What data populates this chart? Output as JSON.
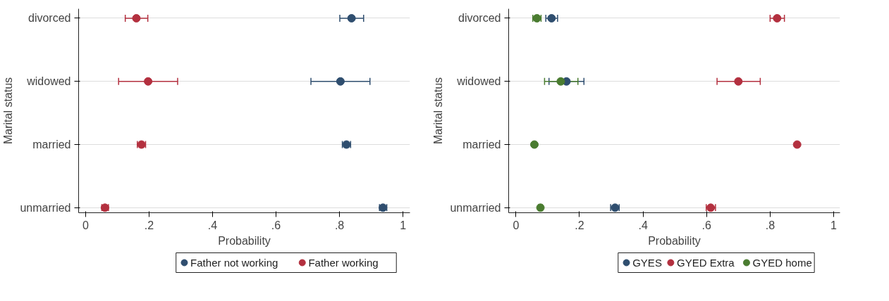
{
  "chart_data": [
    {
      "type": "scatter",
      "orientation": "horizontal",
      "xlabel": "Probability",
      "ylabel": "Marital status",
      "categories": [
        "divorced",
        "widowed",
        "married",
        "unmarried"
      ],
      "xlim": [
        -0.022,
        1.022
      ],
      "xticks": [
        0,
        {
          "value": 0.2,
          "label": ".2"
        },
        {
          "value": 0.4,
          "label": ".4"
        },
        {
          "value": 0.6,
          "label": ".6"
        },
        {
          "value": 0.8,
          "label": ".8"
        },
        1
      ],
      "grid": "y",
      "legend": "bottom",
      "marker": "circle",
      "series": [
        {
          "name": "Father not working",
          "color": "#2f4e6f",
          "values": [
            0.838,
            0.803,
            0.822,
            0.937
          ],
          "errors": [
            [
              0.801,
              0.876
            ],
            [
              0.71,
              0.896
            ],
            [
              0.809,
              0.835
            ],
            [
              0.926,
              0.949
            ]
          ]
        },
        {
          "name": "Father working",
          "color": "#b3303f",
          "values": [
            0.16,
            0.197,
            0.176,
            0.061
          ],
          "errors": [
            [
              0.125,
              0.196
            ],
            [
              0.104,
              0.29
            ],
            [
              0.163,
              0.189
            ],
            [
              0.051,
              0.072
            ]
          ]
        }
      ]
    },
    {
      "type": "scatter",
      "orientation": "horizontal",
      "xlabel": "Probability",
      "ylabel": "Marital status",
      "categories": [
        "divorced",
        "widowed",
        "married",
        "unmarried"
      ],
      "xlim": [
        -0.023,
        1.02
      ],
      "xticks": [
        0,
        {
          "value": 0.2,
          "label": ".2"
        },
        {
          "value": 0.4,
          "label": ".4"
        },
        {
          "value": 0.6,
          "label": ".6"
        },
        {
          "value": 0.8,
          "label": ".8"
        },
        1
      ],
      "grid": "y",
      "legend": "bottom",
      "marker": "circle",
      "series": [
        {
          "name": "GYES",
          "color": "#2f4e6f",
          "values": [
            0.112,
            0.159,
            null,
            0.312
          ],
          "errors": [
            [
              0.094,
              0.131
            ],
            [
              0.104,
              0.214
            ],
            null,
            [
              0.298,
              0.325
            ]
          ]
        },
        {
          "name": "GYED Extra",
          "color": "#b3303f",
          "values": [
            0.822,
            0.7,
            0.885,
            0.613
          ],
          "errors": [
            [
              0.8,
              0.845
            ],
            [
              0.633,
              0.769
            ],
            null,
            [
              0.599,
              0.628
            ]
          ]
        },
        {
          "name": "GYED home",
          "color": "#4a7c30",
          "values": [
            0.066,
            0.141,
            0.058,
            0.077
          ],
          "errors": [
            [
              0.053,
              0.079
            ],
            [
              0.09,
              0.195
            ],
            null,
            [
              0.071,
              0.083
            ]
          ]
        }
      ]
    }
  ]
}
